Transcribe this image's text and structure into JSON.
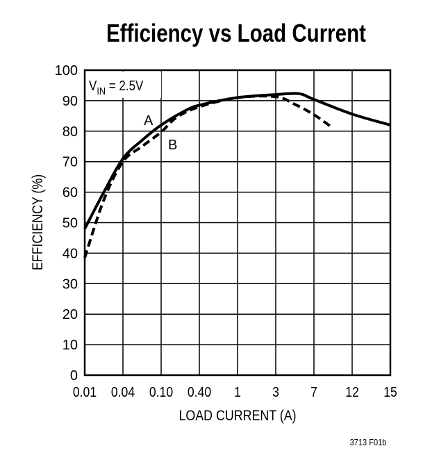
{
  "chart_data": {
    "type": "line",
    "title": "Efficiency vs Load Current",
    "xlabel": "LOAD CURRENT (A)",
    "ylabel": "EFFICIENCY (%)",
    "annotation": "V_IN = 2.5V",
    "annotation_main": "V",
    "annotation_sub": "IN",
    "annotation_rest": " = 2.5V",
    "figure_id": "3713 F01b",
    "x_ticks": [
      "0.01",
      "0.04",
      "0.10",
      "0.40",
      "1",
      "3",
      "7",
      "12",
      "15"
    ],
    "x_tick_values": [
      0.01,
      0.04,
      0.1,
      0.4,
      1,
      3,
      7,
      12,
      15
    ],
    "x_scale": "non-uniform (equally spaced tick labels)",
    "y_ticks": [
      "0",
      "10",
      "20",
      "30",
      "40",
      "50",
      "60",
      "70",
      "80",
      "90",
      "100"
    ],
    "ylim": [
      0,
      100
    ],
    "grid": true,
    "series": [
      {
        "name": "A",
        "style": "solid",
        "x": [
          0.01,
          0.025,
          0.04,
          0.07,
          0.1,
          0.28,
          0.4,
          1,
          3,
          5.4,
          7,
          12,
          15
        ],
        "y": [
          48,
          60,
          71,
          77,
          82,
          86.5,
          88.5,
          91,
          92,
          92.3,
          90.4,
          85.6,
          82
        ]
      },
      {
        "name": "B",
        "style": "dashed",
        "x": [
          0.01,
          0.025,
          0.04,
          0.07,
          0.1,
          0.22,
          0.4,
          1,
          3,
          5,
          7,
          9.5
        ],
        "y": [
          38.5,
          57.5,
          70,
          75,
          79.7,
          84.5,
          88,
          91,
          91.3,
          88.8,
          85.4,
          81
        ]
      }
    ]
  }
}
